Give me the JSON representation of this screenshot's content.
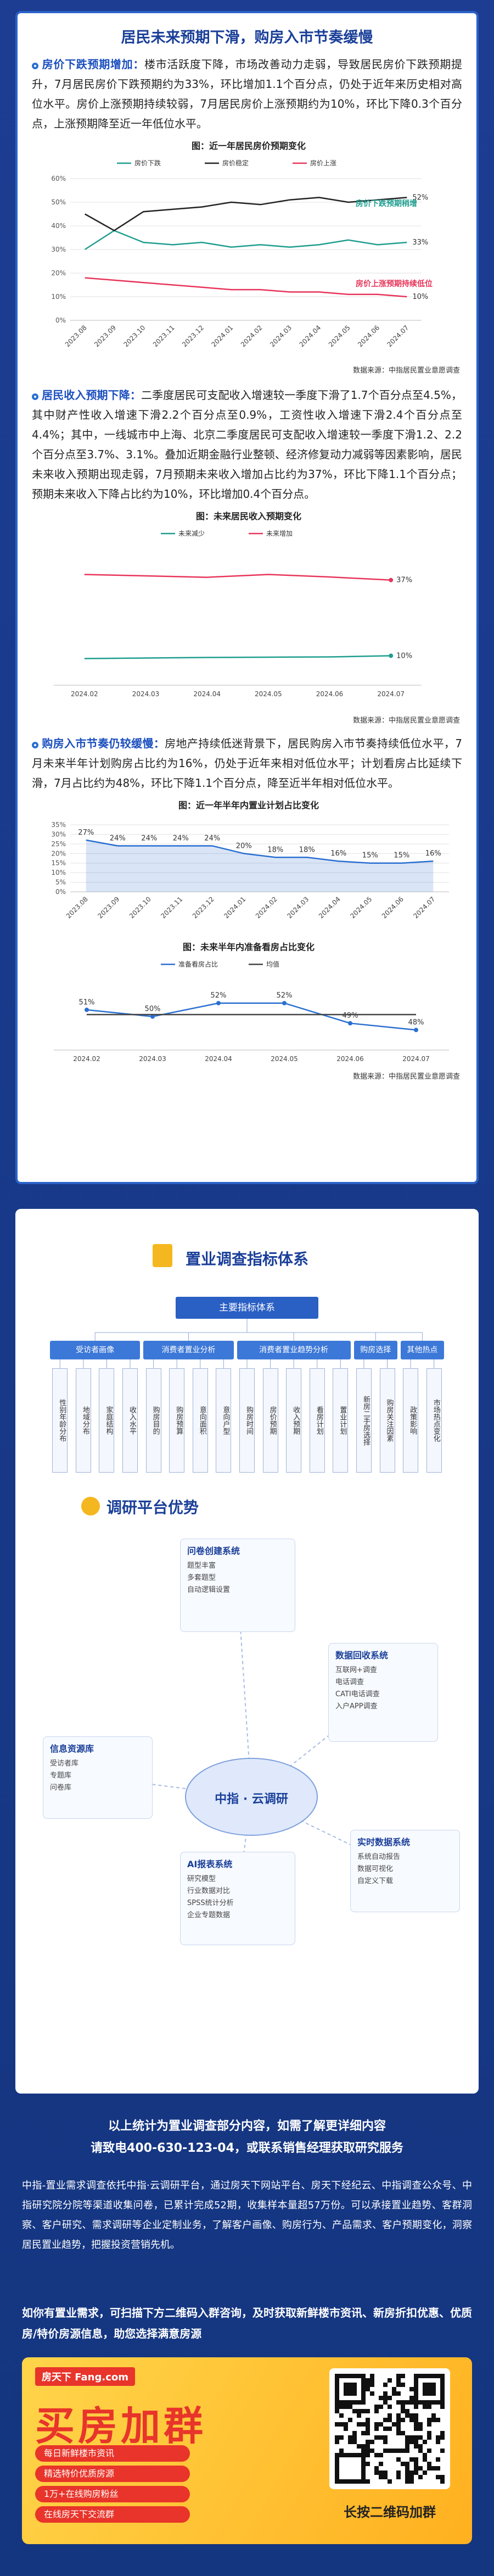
{
  "header": {
    "title": "居民未来预期下滑，购房入市节奏缓慢"
  },
  "sections": [
    {
      "lead": "房价下跌预期增加：",
      "text": "楼市活跃度下降，市场改善动力走弱，导致居民房价下跌预期提升，7月居民房价下跌预期约为33%，环比增加1.1个百分点，仍处于近年来历史相对高位水平。房价上涨预期持续较弱，7月居民房价上涨预期约为10%，环比下降0.3个百分点，上涨预期降至近一年低位水平。"
    },
    {
      "lead": "居民收入预期下降：",
      "text": "二季度居民可支配收入增速较一季度下滑了1.7个百分点至4.5%，其中财产性收入增速下滑2.2个百分点至0.9%，工资性收入增速下滑2.4个百分点至4.4%；其中，一线城市中上海、北京二季度居民可支配收入增速较一季度下滑1.2、2.2个百分点至3.7%、3.1%。叠加近期金融行业整顿、经济修复动力减弱等因素影响，居民未来收入预期出现走弱，7月预期未来收入增加占比约为37%，环比下降1.1个百分点；预期未来收入下降占比约为10%，环比增加0.4个百分点。"
    },
    {
      "lead": "购房入市节奏仍较缓慢：",
      "text": "房地产持续低迷背景下，居民购房入市节奏持续低位水平，7月未来半年计划购房占比约为16%，仍处于近年来相对低位水平；计划看房占比延续下滑，7月占比约为48%，环比下降1.1个百分点，降至近半年相对低位水平。"
    }
  ],
  "chart_data": [
    {
      "type": "line",
      "title": "图：近一年居民房价预期变化",
      "categories": [
        "2023.08",
        "2023.09",
        "2023.10",
        "2023.11",
        "2023.12",
        "2024.01",
        "2024.02",
        "2024.03",
        "2024.04",
        "2024.05",
        "2024.06",
        "2024.07"
      ],
      "series": [
        {
          "name": "房价下跌",
          "color": "#1f9e8f",
          "values": [
            30,
            38,
            33,
            32,
            33,
            31,
            32,
            31,
            32,
            34,
            32,
            33
          ],
          "value_labels": [
            null,
            null,
            null,
            null,
            null,
            null,
            null,
            null,
            null,
            null,
            null,
            "33%"
          ]
        },
        {
          "name": "房价稳定",
          "color": "#222222",
          "values": [
            45,
            38,
            46,
            47,
            48,
            50,
            49,
            51,
            52,
            50,
            51,
            52
          ],
          "value_labels": [
            null,
            null,
            null,
            null,
            null,
            null,
            null,
            null,
            null,
            null,
            null,
            "52%"
          ]
        },
        {
          "name": "房价上涨",
          "color": "#e8355a",
          "values": [
            18,
            17,
            16,
            15,
            14,
            13,
            13,
            12,
            12,
            11,
            11,
            10
          ],
          "value_labels": [
            null,
            null,
            null,
            null,
            null,
            null,
            null,
            null,
            null,
            null,
            null,
            "10%"
          ]
        }
      ],
      "ylim": [
        0,
        60
      ],
      "yticks": [
        {
          "value": 0,
          "label": "0%"
        },
        {
          "value": 10,
          "label": "10%"
        },
        {
          "value": 20,
          "label": "20%"
        },
        {
          "value": 30,
          "label": "30%"
        },
        {
          "value": 40,
          "label": "40%"
        },
        {
          "value": 50,
          "label": "50%"
        },
        {
          "value": 60,
          "label": "60%"
        }
      ],
      "grid": true,
      "annotations": [
        {
          "text": "房价下跌预期稍增",
          "color": "#1f9e8f"
        },
        {
          "text": "房价上涨预期持续低位",
          "color": "#e8355a"
        }
      ],
      "source": "数据来源：中指居民置业意愿调查"
    },
    {
      "type": "line",
      "title": "图：未来居民收入预期变化",
      "categories": [
        "2024.02",
        "2024.03",
        "2024.04",
        "2024.05",
        "2024.06",
        "2024.07"
      ],
      "series": [
        {
          "name": "未来减少",
          "color": "#1f9e8f",
          "values": [
            9,
            9.2,
            9.4,
            9.5,
            9.6,
            10
          ],
          "value_labels": [
            null,
            null,
            null,
            null,
            null,
            "10%"
          ]
        },
        {
          "name": "未来增加",
          "color": "#e8355a",
          "values": [
            39,
            38.5,
            38,
            39,
            38.1,
            37
          ],
          "value_labels": [
            null,
            null,
            null,
            null,
            null,
            "37%"
          ]
        }
      ],
      "source": "数据来源：中指居民置业意愿调查"
    },
    {
      "type": "area",
      "title": "图：近一年半年内置业计划占比变化",
      "categories": [
        "2023.08",
        "2023.09",
        "2023.10",
        "2023.11",
        "2023.12",
        "2024.01",
        "2024.02",
        "2024.03",
        "2024.04",
        "2024.05",
        "2024.06",
        "2024.07"
      ],
      "values": [
        27,
        24,
        24,
        24,
        24,
        20,
        18,
        18,
        16,
        15,
        15,
        16
      ],
      "value_labels": [
        "27%",
        "24%",
        "24%",
        "24%",
        "24%",
        "20%",
        "18%",
        "18%",
        "16%",
        "15%",
        "15%",
        "16%"
      ],
      "color": "#2a6fd1",
      "ylim": [
        0,
        35
      ],
      "yticks": [
        {
          "value": 0,
          "label": "0%"
        },
        {
          "value": 5,
          "label": "5%"
        },
        {
          "value": 10,
          "label": "10%"
        },
        {
          "value": 15,
          "label": "15%"
        },
        {
          "value": 20,
          "label": "20%"
        },
        {
          "value": 25,
          "label": "25%"
        },
        {
          "value": 30,
          "label": "30%"
        },
        {
          "value": 35,
          "label": "35%"
        }
      ],
      "grid": true
    },
    {
      "type": "line",
      "title": "图：未来半年内准备看房占比变化",
      "categories": [
        "2024.02",
        "2024.03",
        "2024.04",
        "2024.05",
        "2024.06",
        "2024.07"
      ],
      "series": [
        {
          "name": "准备看房占比",
          "color": "#2a6fd1",
          "values": [
            51,
            50,
            52,
            52,
            49,
            48
          ],
          "value_labels": [
            "51%",
            "50%",
            "52%",
            "52%",
            "49%",
            "48%"
          ]
        },
        {
          "name": "均值",
          "color": "#444444",
          "values": [
            50.3,
            50.3,
            50.3,
            50.3,
            50.3,
            50.3
          ]
        }
      ],
      "source": "数据来源：中指居民置业意愿调查"
    }
  ],
  "indicator_system": {
    "title": "置业调查指标体系",
    "root": "主要指标体系",
    "branches": [
      {
        "label": "受访者画像",
        "items": [
          "性别年龄分布",
          "地域分布",
          "家庭结构",
          "收入水平"
        ]
      },
      {
        "label": "消费者置业分析",
        "items": [
          "购房目的",
          "购房预算",
          "意向面积",
          "意向户型"
        ]
      },
      {
        "label": "消费者置业趋势分析",
        "items": [
          "购房时间",
          "房价预期",
          "收入预期",
          "看房计划",
          "置业计划"
        ]
      },
      {
        "label": "购房选择",
        "items": [
          "新房二手房选择",
          "购房关注因素"
        ]
      },
      {
        "label": "其他热点",
        "items": [
          "政策影响",
          "市场热点变化"
        ]
      }
    ]
  },
  "platform": {
    "title": "调研平台优势",
    "center": "中指 · 云调研",
    "modules": [
      {
        "title": "问卷创建系统",
        "items": [
          "题型丰富",
          "多套题型",
          "自动逻辑设置"
        ]
      },
      {
        "title": "数据回收系统",
        "items": [
          "互联网+调查",
          "电话调查",
          "CATI电话调查",
          "入户APP调查"
        ]
      },
      {
        "title": "信息资源库",
        "items": [
          "受访者库",
          "专题库",
          "问卷库"
        ]
      },
      {
        "title": "AI报表系统",
        "items": [
          "研究模型",
          "行业数据对比",
          "SPSS统计分析",
          "企业专题数据"
        ]
      },
      {
        "title": "实时数据系统",
        "items": [
          "系统自动报告",
          "数据可视化",
          "自定义下载"
        ]
      }
    ]
  },
  "contact": {
    "line1": "以上统计为置业调查部分内容，如需了解更详细内容",
    "line2": "请致电400-630-123-04，或联系销售经理获取研究服务",
    "about": "中指-置业需求调查依托中指·云调研平台，通过房天下网站平台、房天下经纪云、中指调查公众号、中指研究院分院等渠道收集问卷，已累计完成52期，收集样本量超57万份。可以承接置业趋势、客群洞察、客户研究、需求调研等企业定制业务，了解客户画像、购房行为、产品需求、客户预期变化，洞察居民置业趋势，把握投资营销先机。",
    "invite": "如你有置业需求，可扫描下方二维码入群咨询，及时获取新鲜楼市资讯、新房折扣优惠、优质房/特价房源信息，助您选择满意房源"
  },
  "banner": {
    "logo": "房天下 Fang.com",
    "headline": "买房加群",
    "bullets": [
      "每日新鲜楼市资讯",
      "精选特价优质房源",
      "1万+在线购房粉丝",
      "在线房天下交流群"
    ],
    "qr_caption": "长按二维码加群"
  }
}
